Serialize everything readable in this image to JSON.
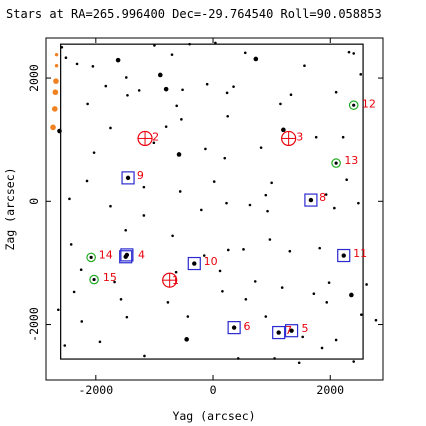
{
  "chart_data": {
    "type": "scatter",
    "title": "Stars at RA=265.996400 Dec=-29.764540 Roll=90.058853",
    "xlabel": "Yag (arcsec)",
    "ylabel": "Zag (arcsec)",
    "xlim": [
      -2850,
      2900
    ],
    "ylim": [
      -2900,
      2650
    ],
    "xticks": [
      {
        "value": -2000,
        "label": "-2000"
      },
      {
        "value": 0,
        "label": "0"
      },
      {
        "value": 2000,
        "label": "2000"
      }
    ],
    "yticks": [
      {
        "value": -2000,
        "label": "-2000"
      },
      {
        "value": 0,
        "label": "0"
      },
      {
        "value": 2000,
        "label": "2000"
      }
    ],
    "grid": false,
    "field_boundary": {
      "y": [
        -2600,
        2560
      ],
      "z": [
        -2560,
        2550
      ]
    },
    "colors": {
      "guide": "#e8000b",
      "acq": "#2a2ad0",
      "fid": "#22aa22",
      "bad": "#f08020",
      "star": "#000000",
      "label": "#e8000b"
    },
    "guide_stars": [
      {
        "id": "1",
        "y": -740,
        "z": -1280
      },
      {
        "id": "2",
        "y": -1160,
        "z": 1020
      },
      {
        "id": "3",
        "y": 1290,
        "z": 1020
      }
    ],
    "acq_stars": [
      {
        "id": "4",
        "y": -1470,
        "z": -870
      },
      {
        "id": "5",
        "y": 1340,
        "z": -2100
      },
      {
        "id": "6",
        "y": 360,
        "z": -2050
      },
      {
        "id": "7",
        "y": 1120,
        "z": -2130
      },
      {
        "id": "8",
        "y": 1670,
        "z": 20
      },
      {
        "id": "9",
        "y": -1450,
        "z": 380
      },
      {
        "id": "10",
        "y": -320,
        "z": -1010
      },
      {
        "id": "11",
        "y": 2230,
        "z": -880
      },
      {
        "id": "14",
        "y": -1490,
        "z": -900
      }
    ],
    "fid_stars": [
      {
        "id": "12",
        "y": 2400,
        "z": 1560
      },
      {
        "id": "13",
        "y": 2100,
        "z": 620
      },
      {
        "id": "14",
        "y": -2080,
        "z": -910
      },
      {
        "id": "15",
        "y": -2030,
        "z": -1270
      }
    ],
    "bad_stars": [
      {
        "y": -2670,
        "z": 2380
      },
      {
        "y": -2670,
        "z": 2200
      },
      {
        "id": "",
        "y": -2680,
        "z": 1950
      },
      {
        "y": -2690,
        "z": 1770
      },
      {
        "y": -2700,
        "z": 1500
      },
      {
        "y": -2730,
        "z": 1200
      }
    ],
    "id_labels": [
      {
        "text": "1",
        "y": -700,
        "z": -1280
      },
      {
        "text": "2",
        "y": -1040,
        "z": 1050
      },
      {
        "text": "3",
        "y": 1420,
        "z": 1050
      },
      {
        "text": "4",
        "y": -1280,
        "z": -860
      },
      {
        "text": "5",
        "y": 1510,
        "z": -2060
      },
      {
        "text": "6",
        "y": 520,
        "z": -2020
      },
      {
        "text": "7",
        "y": 1230,
        "z": -2090
      },
      {
        "text": "8",
        "y": 1810,
        "z": 70
      },
      {
        "text": "9",
        "y": -1300,
        "z": 430
      },
      {
        "text": "10",
        "y": -160,
        "z": -970
      },
      {
        "text": "11",
        "y": 2390,
        "z": -840
      },
      {
        "text": "12",
        "y": 2540,
        "z": 1590
      },
      {
        "text": "13",
        "y": 2240,
        "z": 670
      },
      {
        "text": "14",
        "y": -1950,
        "z": -860
      },
      {
        "text": "15",
        "y": -1880,
        "z": -1230
      }
    ],
    "field_stars": [
      {
        "y": -2580,
        "z": 2500,
        "m": 1
      },
      {
        "y": -2510,
        "z": 2330,
        "m": 1
      },
      {
        "y": -2320,
        "z": 2230,
        "m": 1
      },
      {
        "y": -2050,
        "z": 2190,
        "m": 1
      },
      {
        "y": -1620,
        "z": 2290,
        "m": 2
      },
      {
        "y": -1000,
        "z": 2530,
        "m": 1
      },
      {
        "y": -700,
        "z": 2380,
        "m": 1
      },
      {
        "y": -400,
        "z": 2550,
        "m": 1
      },
      {
        "y": 40,
        "z": 2570,
        "m": 1
      },
      {
        "y": 550,
        "z": 2410,
        "m": 1
      },
      {
        "y": 730,
        "z": 2310,
        "m": 2
      },
      {
        "y": 1560,
        "z": 2200,
        "m": 1
      },
      {
        "y": 2320,
        "z": 2420,
        "m": 1
      },
      {
        "y": 2400,
        "z": 2400,
        "m": 1
      },
      {
        "y": 2520,
        "z": 2060,
        "m": 1
      },
      {
        "y": -1480,
        "z": 2010,
        "m": 1
      },
      {
        "y": -1830,
        "z": 1870,
        "m": 1
      },
      {
        "y": -1460,
        "z": 1720,
        "m": 1
      },
      {
        "y": -900,
        "z": 2050,
        "m": 2
      },
      {
        "y": -1260,
        "z": 1800,
        "m": 1
      },
      {
        "y": -800,
        "z": 1820,
        "m": 2
      },
      {
        "y": -520,
        "z": 1810,
        "m": 1
      },
      {
        "y": -100,
        "z": 1900,
        "m": 1
      },
      {
        "y": 240,
        "z": 1760,
        "m": 1
      },
      {
        "y": 350,
        "z": 1860,
        "m": 1
      },
      {
        "y": 1150,
        "z": 1580,
        "m": 1
      },
      {
        "y": 1330,
        "z": 1730,
        "m": 1
      },
      {
        "y": 2100,
        "z": 1770,
        "m": 1
      },
      {
        "y": -2140,
        "z": 1580,
        "m": 1
      },
      {
        "y": -2620,
        "z": 1140,
        "m": 2
      },
      {
        "y": -1750,
        "z": 1190,
        "m": 1
      },
      {
        "y": -800,
        "z": 1210,
        "m": 1
      },
      {
        "y": -620,
        "z": 1550,
        "m": 1
      },
      {
        "y": -540,
        "z": 1330,
        "m": 1
      },
      {
        "y": 250,
        "z": 1380,
        "m": 1
      },
      {
        "y": 1200,
        "z": 1160,
        "m": 2
      },
      {
        "y": 1760,
        "z": 1040,
        "m": 1
      },
      {
        "y": 2220,
        "z": 1040,
        "m": 1
      },
      {
        "y": -2030,
        "z": 790,
        "m": 1
      },
      {
        "y": -1010,
        "z": 950,
        "m": 1
      },
      {
        "y": -580,
        "z": 760,
        "m": 2
      },
      {
        "y": -130,
        "z": 850,
        "m": 1
      },
      {
        "y": 200,
        "z": 700,
        "m": 1
      },
      {
        "y": 820,
        "z": 870,
        "m": 1
      },
      {
        "y": -2150,
        "z": 330,
        "m": 1
      },
      {
        "y": -1180,
        "z": 230,
        "m": 1
      },
      {
        "y": -560,
        "z": 160,
        "m": 1
      },
      {
        "y": 20,
        "z": 320,
        "m": 1
      },
      {
        "y": 1000,
        "z": 300,
        "m": 1
      },
      {
        "y": 900,
        "z": 100,
        "m": 1
      },
      {
        "y": 1930,
        "z": 110,
        "m": 1
      },
      {
        "y": 2280,
        "z": 350,
        "m": 1
      },
      {
        "y": -2450,
        "z": 40,
        "m": 1
      },
      {
        "y": -1750,
        "z": -80,
        "m": 1
      },
      {
        "y": -1180,
        "z": -230,
        "m": 1
      },
      {
        "y": -200,
        "z": -140,
        "m": 1
      },
      {
        "y": 230,
        "z": -30,
        "m": 1
      },
      {
        "y": 630,
        "z": -60,
        "m": 1
      },
      {
        "y": 930,
        "z": -160,
        "m": 1
      },
      {
        "y": 2070,
        "z": -110,
        "m": 1
      },
      {
        "y": 2480,
        "z": -30,
        "m": 1
      },
      {
        "y": -2420,
        "z": -700,
        "m": 1
      },
      {
        "y": -1490,
        "z": -470,
        "m": 1
      },
      {
        "y": -690,
        "z": -560,
        "m": 1
      },
      {
        "y": -150,
        "z": -880,
        "m": 1
      },
      {
        "y": 260,
        "z": -790,
        "m": 1
      },
      {
        "y": 520,
        "z": -780,
        "m": 1
      },
      {
        "y": 970,
        "z": -620,
        "m": 1
      },
      {
        "y": 1310,
        "z": -810,
        "m": 1
      },
      {
        "y": 1820,
        "z": -760,
        "m": 1
      },
      {
        "y": -2250,
        "z": -1110,
        "m": 1
      },
      {
        "y": -1680,
        "z": -1310,
        "m": 1
      },
      {
        "y": -630,
        "z": -1150,
        "m": 1
      },
      {
        "y": 120,
        "z": -1130,
        "m": 1
      },
      {
        "y": 720,
        "z": -1300,
        "m": 1
      },
      {
        "y": 1180,
        "z": -1400,
        "m": 1
      },
      {
        "y": 1980,
        "z": -1320,
        "m": 1
      },
      {
        "y": 2360,
        "z": -1520,
        "m": 2
      },
      {
        "y": 2620,
        "z": -1350,
        "m": 1
      },
      {
        "y": -2370,
        "z": -1470,
        "m": 1
      },
      {
        "y": -1570,
        "z": -1590,
        "m": 1
      },
      {
        "y": -770,
        "z": -1640,
        "m": 1
      },
      {
        "y": 160,
        "z": -1460,
        "m": 1
      },
      {
        "y": 560,
        "z": -1590,
        "m": 1
      },
      {
        "y": 1720,
        "z": -1500,
        "m": 1
      },
      {
        "y": 1940,
        "z": -1640,
        "m": 1
      },
      {
        "y": 2530,
        "z": -1840,
        "m": 1
      },
      {
        "y": 2780,
        "z": -1930,
        "m": 1
      },
      {
        "y": -2640,
        "z": -1760,
        "m": 1
      },
      {
        "y": -2240,
        "z": -1950,
        "m": 1
      },
      {
        "y": -1470,
        "z": -1880,
        "m": 1
      },
      {
        "y": -430,
        "z": -1870,
        "m": 1
      },
      {
        "y": -450,
        "z": -2240,
        "m": 2
      },
      {
        "y": 900,
        "z": -1870,
        "m": 1
      },
      {
        "y": 1530,
        "z": -2200,
        "m": 1
      },
      {
        "y": 1860,
        "z": -2380,
        "m": 1
      },
      {
        "y": 2100,
        "z": -2250,
        "m": 1
      },
      {
        "y": -2530,
        "z": -2340,
        "m": 1
      },
      {
        "y": -1930,
        "z": -2280,
        "m": 1
      },
      {
        "y": -1170,
        "z": -2510,
        "m": 1
      },
      {
        "y": 430,
        "z": -2550,
        "m": 1
      },
      {
        "y": 1050,
        "z": -2550,
        "m": 1
      },
      {
        "y": 1470,
        "z": -2620,
        "m": 1
      },
      {
        "y": 2400,
        "z": -2600,
        "m": 1
      }
    ]
  }
}
